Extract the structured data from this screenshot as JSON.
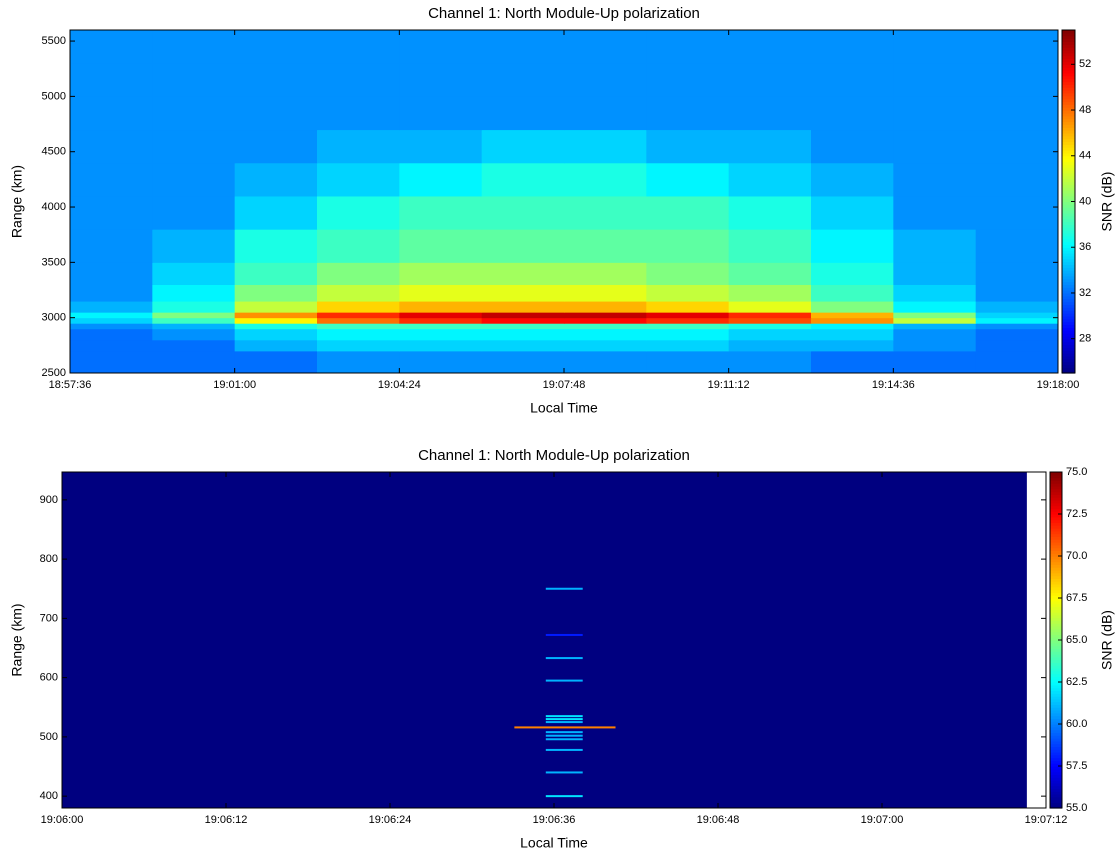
{
  "chart_data": [
    {
      "type": "heatmap",
      "title": "Channel 1: North Module-Up polarization",
      "xlabel": "Local Time",
      "ylabel": "Range (km)",
      "colorbar_label": "SNR (dB)",
      "colormap": "jet",
      "xlim": [
        68256,
        69480
      ],
      "xticks": [
        {
          "value": 68256,
          "label": "18:57:36"
        },
        {
          "value": 68460,
          "label": "19:01:00"
        },
        {
          "value": 68664,
          "label": "19:04:24"
        },
        {
          "value": 68868,
          "label": "19:07:48"
        },
        {
          "value": 69072,
          "label": "19:11:12"
        },
        {
          "value": 69276,
          "label": "19:14:36"
        },
        {
          "value": 69480,
          "label": "19:18:00"
        }
      ],
      "ylim": [
        2500,
        5600
      ],
      "yticks": [
        2500,
        3000,
        3500,
        4000,
        4500,
        5000,
        5500
      ],
      "clim": [
        25,
        55
      ],
      "cticks": [
        28,
        32,
        36,
        40,
        44,
        48,
        52
      ],
      "x_edges": [
        68256,
        68358,
        68460,
        68562,
        68664,
        68766,
        68868,
        68970,
        69072,
        69174,
        69276,
        69378,
        69480
      ],
      "y_edges": [
        2500,
        2700,
        2800,
        2900,
        2950,
        3000,
        3050,
        3150,
        3300,
        3500,
        3800,
        4100,
        4400,
        4700,
        5000,
        5300,
        5600
      ],
      "z": [
        [
          32,
          32,
          32,
          33,
          33,
          33,
          33,
          33,
          33,
          32,
          32,
          32
        ],
        [
          32,
          32,
          34,
          35,
          35,
          35,
          35,
          35,
          34,
          34,
          33,
          32
        ],
        [
          32,
          33,
          35,
          36,
          36,
          36,
          36,
          36,
          35,
          35,
          33,
          32
        ],
        [
          33,
          34,
          37,
          38,
          38,
          38,
          38,
          38,
          37,
          36,
          34,
          33
        ],
        [
          35,
          38,
          44,
          48,
          50,
          51,
          51,
          50,
          49,
          47,
          42,
          36
        ],
        [
          36,
          40,
          47,
          50,
          52,
          53,
          53,
          52,
          50,
          46,
          40,
          35
        ],
        [
          34,
          37,
          42,
          45,
          46,
          46,
          46,
          45,
          43,
          40,
          36,
          34
        ],
        [
          33,
          36,
          40,
          42,
          43,
          43,
          43,
          42,
          41,
          38,
          35,
          33
        ],
        [
          33,
          35,
          38,
          40,
          41,
          41,
          41,
          40,
          39,
          37,
          34,
          33
        ],
        [
          33,
          34,
          37,
          38,
          39,
          39,
          39,
          39,
          38,
          36,
          34,
          33
        ],
        [
          33,
          33,
          35,
          37,
          38,
          38,
          38,
          38,
          37,
          35,
          33,
          33
        ],
        [
          33,
          33,
          34,
          35,
          36,
          37,
          37,
          36,
          35,
          34,
          33,
          33
        ],
        [
          33,
          33,
          33,
          34,
          34,
          35,
          35,
          34,
          34,
          33,
          33,
          33
        ],
        [
          33,
          33,
          33,
          33,
          33,
          33,
          33,
          33,
          33,
          33,
          33,
          33
        ],
        [
          33,
          33,
          33,
          33,
          33,
          33,
          33,
          33,
          33,
          33,
          33,
          33
        ],
        [
          33,
          33,
          33,
          33,
          33,
          33,
          33,
          33,
          33,
          33,
          33,
          33
        ]
      ]
    },
    {
      "type": "heatmap",
      "title": "Channel 1: North Module-Up polarization",
      "xlabel": "Local Time",
      "ylabel": "Range (km)",
      "colorbar_label": "SNR (dB)",
      "colormap": "jet",
      "xlim": [
        68760,
        68832
      ],
      "xticks": [
        {
          "value": 68760,
          "label": "19:06:00"
        },
        {
          "value": 68772,
          "label": "19:06:12"
        },
        {
          "value": 68784,
          "label": "19:06:24"
        },
        {
          "value": 68796,
          "label": "19:06:36"
        },
        {
          "value": 68808,
          "label": "19:06:48"
        },
        {
          "value": 68820,
          "label": "19:07:00"
        },
        {
          "value": 68832,
          "label": "19:07:12"
        }
      ],
      "ylim": [
        380,
        947
      ],
      "yticks": [
        400,
        500,
        600,
        700,
        800,
        900
      ],
      "clim": [
        55,
        75
      ],
      "cticks": [
        {
          "value": 55,
          "label": "55.0"
        },
        57.5,
        {
          "value": 60,
          "label": "60.0"
        },
        62.5,
        {
          "value": 65,
          "label": "65.0"
        },
        67.5,
        {
          "value": 70,
          "label": "70.0"
        },
        72.5,
        {
          "value": 75,
          "label": "75.0"
        }
      ],
      "background": 55,
      "x_data_end": 68830.6,
      "streaks": [
        {
          "y": 750,
          "x0": 68795.4,
          "x1": 68798.1,
          "z": 61
        },
        {
          "y": 672,
          "x0": 68795.4,
          "x1": 68798.1,
          "z": 58
        },
        {
          "y": 633,
          "x0": 68795.4,
          "x1": 68798.1,
          "z": 61
        },
        {
          "y": 595,
          "x0": 68795.4,
          "x1": 68798.1,
          "z": 61
        },
        {
          "y": 535,
          "x0": 68795.4,
          "x1": 68798.1,
          "z": 62
        },
        {
          "y": 530,
          "x0": 68795.4,
          "x1": 68798.1,
          "z": 62
        },
        {
          "y": 525,
          "x0": 68795.4,
          "x1": 68798.1,
          "z": 61
        },
        {
          "y": 508,
          "x0": 68795.4,
          "x1": 68798.1,
          "z": 61
        },
        {
          "y": 502,
          "x0": 68795.4,
          "x1": 68798.1,
          "z": 61
        },
        {
          "y": 496,
          "x0": 68795.4,
          "x1": 68798.1,
          "z": 61
        },
        {
          "y": 478,
          "x0": 68795.4,
          "x1": 68798.1,
          "z": 61
        },
        {
          "y": 440,
          "x0": 68795.4,
          "x1": 68798.1,
          "z": 61
        },
        {
          "y": 400,
          "x0": 68795.4,
          "x1": 68798.1,
          "z": 62
        },
        {
          "y": 516,
          "x0": 68793.1,
          "x1": 68800.5,
          "z": 70
        }
      ]
    }
  ]
}
